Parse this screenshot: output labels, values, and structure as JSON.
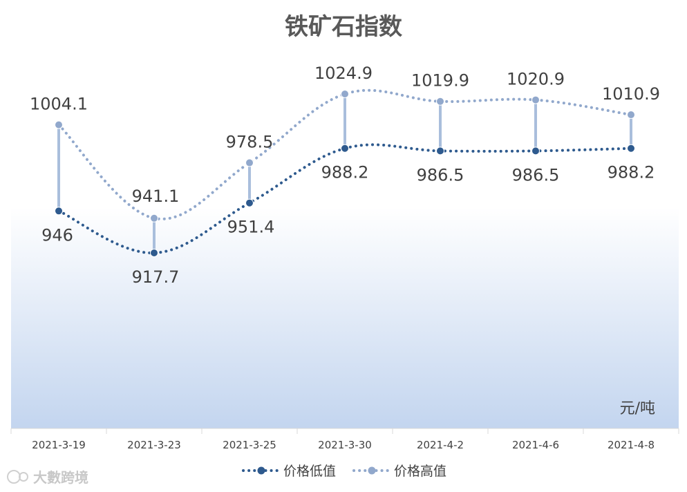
{
  "chart_data": {
    "type": "line",
    "title": "铁矿石指数",
    "unit_label": "元/吨",
    "categories": [
      "2021-3-19",
      "2021-3-23",
      "2021-3-25",
      "2021-3-30",
      "2021-4-2",
      "2021-4-6",
      "2021-4-8"
    ],
    "series": [
      {
        "name": "价格低值",
        "values": [
          946,
          917.7,
          951.4,
          988.2,
          986.5,
          986.5,
          988.2
        ],
        "color": "#2e5a8e"
      },
      {
        "name": "价格高值",
        "values": [
          1004.1,
          941.1,
          978.5,
          1024.9,
          1019.9,
          1020.9,
          1010.9
        ],
        "color": "#91a8cc"
      }
    ],
    "value_labels": {
      "low": [
        "946",
        "917.7",
        "951.4",
        "988.2",
        "986.5",
        "986.5",
        "988.2"
      ],
      "high": [
        "1004.1",
        "941.1",
        "978.5",
        "1024.9",
        "1019.9",
        "1020.9",
        "1010.9"
      ]
    },
    "legend_position": "bottom",
    "grid": false,
    "watermark": "大數跨境"
  }
}
